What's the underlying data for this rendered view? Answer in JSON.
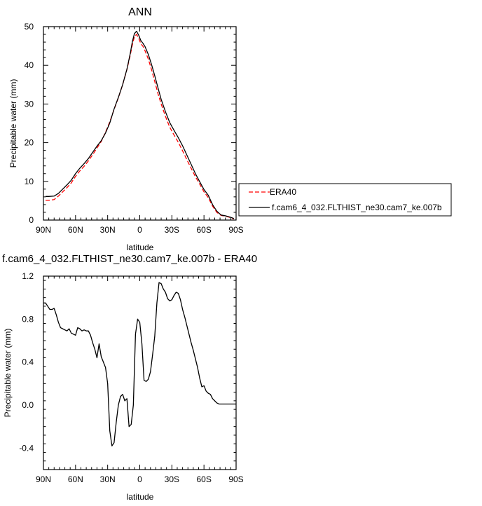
{
  "chart_data": [
    {
      "type": "line",
      "title": "ANN",
      "xlabel": "latitude",
      "ylabel": "Precipitable water (mm)",
      "xlim": [
        90,
        -90
      ],
      "ylim": [
        0,
        50
      ],
      "x_ticks": [
        90,
        60,
        30,
        0,
        -30,
        -60,
        -90
      ],
      "x_tick_labels": [
        "90N",
        "60N",
        "30N",
        "0",
        "30S",
        "60S",
        "90S"
      ],
      "y_ticks": [
        0,
        10,
        20,
        30,
        40,
        50
      ],
      "y_tick_labels": [
        "0",
        "10",
        "20",
        "30",
        "40",
        "50"
      ],
      "grid": false,
      "legend_position": "right",
      "series": [
        {
          "name": "ERA40",
          "color": "#ff0000",
          "dash": "dashed",
          "x": [
            88,
            85,
            80,
            76,
            72,
            68,
            64,
            60,
            56,
            52,
            48,
            44,
            40,
            36,
            32,
            28,
            24,
            20,
            16,
            12,
            9,
            7,
            5,
            3,
            1,
            -1,
            -3,
            -5,
            -8,
            -11,
            -14,
            -17,
            -20,
            -24,
            -28,
            -32,
            -36,
            -40,
            -44,
            -48,
            -52,
            -56,
            -60,
            -64,
            -68,
            -72,
            -76,
            -80,
            -84,
            -88
          ],
          "y": [
            5.1,
            5.1,
            5.3,
            6.2,
            7.3,
            8.4,
            9.6,
            11.3,
            12.7,
            13.9,
            15.3,
            16.9,
            18.6,
            20.3,
            22.7,
            25.4,
            28.6,
            31.6,
            35.0,
            38.9,
            42.5,
            45.2,
            47.4,
            48.0,
            47.0,
            45.6,
            44.9,
            43.7,
            41.6,
            38.9,
            35.8,
            32.7,
            30.0,
            26.8,
            24.0,
            22.0,
            20.1,
            17.9,
            15.6,
            13.4,
            11.2,
            9.3,
            7.3,
            5.8,
            3.6,
            2.0,
            1.2,
            1.0,
            0.7,
            0.3
          ]
        },
        {
          "name": "f.cam6_4_032.FLTHIST_ne30.cam7_ke.007b",
          "color": "#000000",
          "dash": "solid",
          "x": [
            88,
            85,
            80,
            76,
            72,
            68,
            64,
            60,
            56,
            52,
            48,
            44,
            40,
            36,
            32,
            28,
            24,
            20,
            16,
            12,
            9,
            7,
            5,
            3,
            1,
            -1,
            -3,
            -5,
            -8,
            -11,
            -14,
            -17,
            -20,
            -24,
            -28,
            -32,
            -36,
            -40,
            -44,
            -48,
            -52,
            -56,
            -60,
            -64,
            -68,
            -72,
            -76,
            -80,
            -84,
            -88
          ],
          "y": [
            6.1,
            6.1,
            6.2,
            6.9,
            8.0,
            9.1,
            10.3,
            12.0,
            13.4,
            14.6,
            15.9,
            17.5,
            19.1,
            20.5,
            22.5,
            25.1,
            28.7,
            31.7,
            35.0,
            39.0,
            42.9,
            46.0,
            48.2,
            48.8,
            47.8,
            46.4,
            45.7,
            44.8,
            42.8,
            40.2,
            37.3,
            34.2,
            31.2,
            28.0,
            25.2,
            23.2,
            21.3,
            19.2,
            16.8,
            14.4,
            12.0,
            9.9,
            7.9,
            6.4,
            4.0,
            2.3,
            1.3,
            1.1,
            0.8,
            0.4
          ]
        }
      ]
    },
    {
      "type": "line",
      "title": "f.cam6_4_032.FLTHIST_ne30.cam7_ke.007b - ERA40",
      "xlabel": "latitude",
      "ylabel": "Precipitable water (mm)",
      "xlim": [
        90,
        -90
      ],
      "ylim": [
        -0.6,
        1.2
      ],
      "x_ticks": [
        90,
        60,
        30,
        0,
        -30,
        -60,
        -90
      ],
      "x_tick_labels": [
        "90N",
        "60N",
        "30N",
        "0",
        "30S",
        "60S",
        "90S"
      ],
      "y_ticks": [
        -0.4,
        0.0,
        0.4,
        0.8,
        1.2
      ],
      "y_tick_labels": [
        "-0.4",
        "0.0",
        "0.4",
        "0.8",
        "1.2"
      ],
      "grid": false,
      "series": [
        {
          "color": "#000000",
          "dash": "solid",
          "x": [
            90,
            88,
            86,
            84,
            82,
            80,
            78,
            76,
            74,
            72,
            70,
            68,
            66,
            64,
            62,
            60,
            58,
            56,
            54,
            52,
            50,
            48,
            46,
            44,
            42,
            40,
            38,
            36,
            34,
            32,
            30,
            28,
            26,
            24,
            22,
            20,
            18,
            16,
            14,
            12,
            10,
            8,
            6,
            4,
            2,
            0,
            -2,
            -4,
            -6,
            -8,
            -10,
            -12,
            -14,
            -16,
            -18,
            -20,
            -22,
            -24,
            -26,
            -28,
            -30,
            -32,
            -34,
            -36,
            -38,
            -40,
            -42,
            -44,
            -46,
            -48,
            -50,
            -52,
            -54,
            -56,
            -58,
            -60,
            -62,
            -64,
            -66,
            -68,
            -70,
            -72,
            -74,
            -76,
            -78,
            -80,
            -82,
            -84,
            -86,
            -88,
            -90
          ],
          "y": [
            0.95,
            0.95,
            0.92,
            0.89,
            0.89,
            0.9,
            0.84,
            0.77,
            0.72,
            0.71,
            0.7,
            0.69,
            0.71,
            0.67,
            0.66,
            0.65,
            0.72,
            0.71,
            0.69,
            0.7,
            0.69,
            0.69,
            0.65,
            0.58,
            0.52,
            0.44,
            0.57,
            0.45,
            0.4,
            0.35,
            0.2,
            -0.24,
            -0.38,
            -0.35,
            -0.16,
            0.0,
            0.08,
            0.1,
            0.04,
            0.06,
            -0.2,
            -0.18,
            0.0,
            0.66,
            0.8,
            0.77,
            0.57,
            0.23,
            0.22,
            0.24,
            0.31,
            0.47,
            0.64,
            0.95,
            1.14,
            1.13,
            1.08,
            1.05,
            0.99,
            0.97,
            0.98,
            1.02,
            1.05,
            1.04,
            0.98,
            0.89,
            0.82,
            0.74,
            0.66,
            0.58,
            0.51,
            0.43,
            0.35,
            0.25,
            0.17,
            0.18,
            0.13,
            0.11,
            0.1,
            0.06,
            0.04,
            0.02,
            0.01,
            0.01,
            0.01,
            0.01,
            0.01,
            0.01,
            0.01,
            0.01,
            0.01
          ]
        }
      ]
    }
  ]
}
